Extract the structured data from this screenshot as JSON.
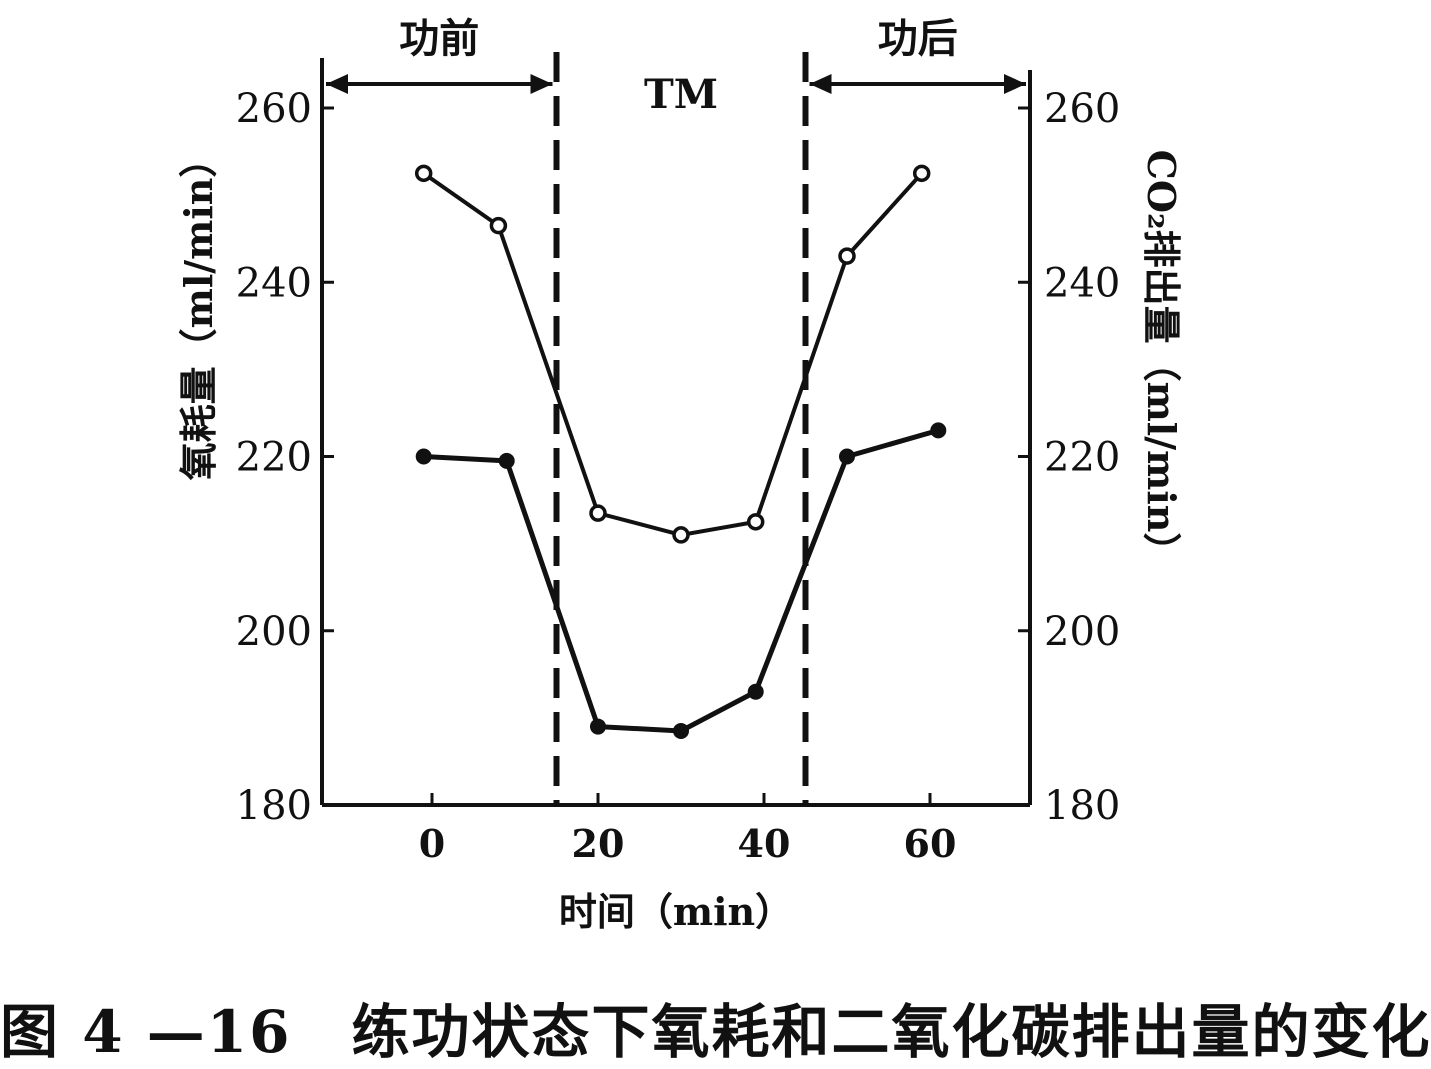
{
  "chart_data": {
    "type": "line",
    "title": "",
    "xlabel": "时间（min）",
    "ylabel_left": "氧耗量（ml/min）",
    "ylabel_right": "CO₂排出量（ml/min）",
    "xlim": [
      -14,
      72
    ],
    "ylim": [
      180,
      265
    ],
    "x_ticks": [
      0,
      20,
      40,
      60
    ],
    "y_ticks": [
      180,
      200,
      220,
      240,
      260
    ],
    "grid": false,
    "regions": [
      {
        "label": "功前",
        "from": -14,
        "to": 15
      },
      {
        "label": "TM",
        "from": 15,
        "to": 45
      },
      {
        "label": "功后",
        "from": 45,
        "to": 72
      }
    ],
    "series": [
      {
        "marker": "open-circle",
        "x": [
          -1,
          8,
          20,
          30,
          39,
          50,
          59
        ],
        "values": [
          252.5,
          246.5,
          213.5,
          211,
          212.5,
          243,
          252.5
        ]
      },
      {
        "marker": "filled-circle",
        "x": [
          -1,
          9,
          20,
          30,
          39,
          50,
          61
        ],
        "values": [
          220,
          219.5,
          189,
          188.5,
          193,
          220,
          223
        ]
      }
    ]
  },
  "caption": "图 4 —16　练功状态下氧耗和二氧化碳排出量的变化",
  "colors": {
    "ink": "#111111",
    "background": "#ffffff"
  }
}
